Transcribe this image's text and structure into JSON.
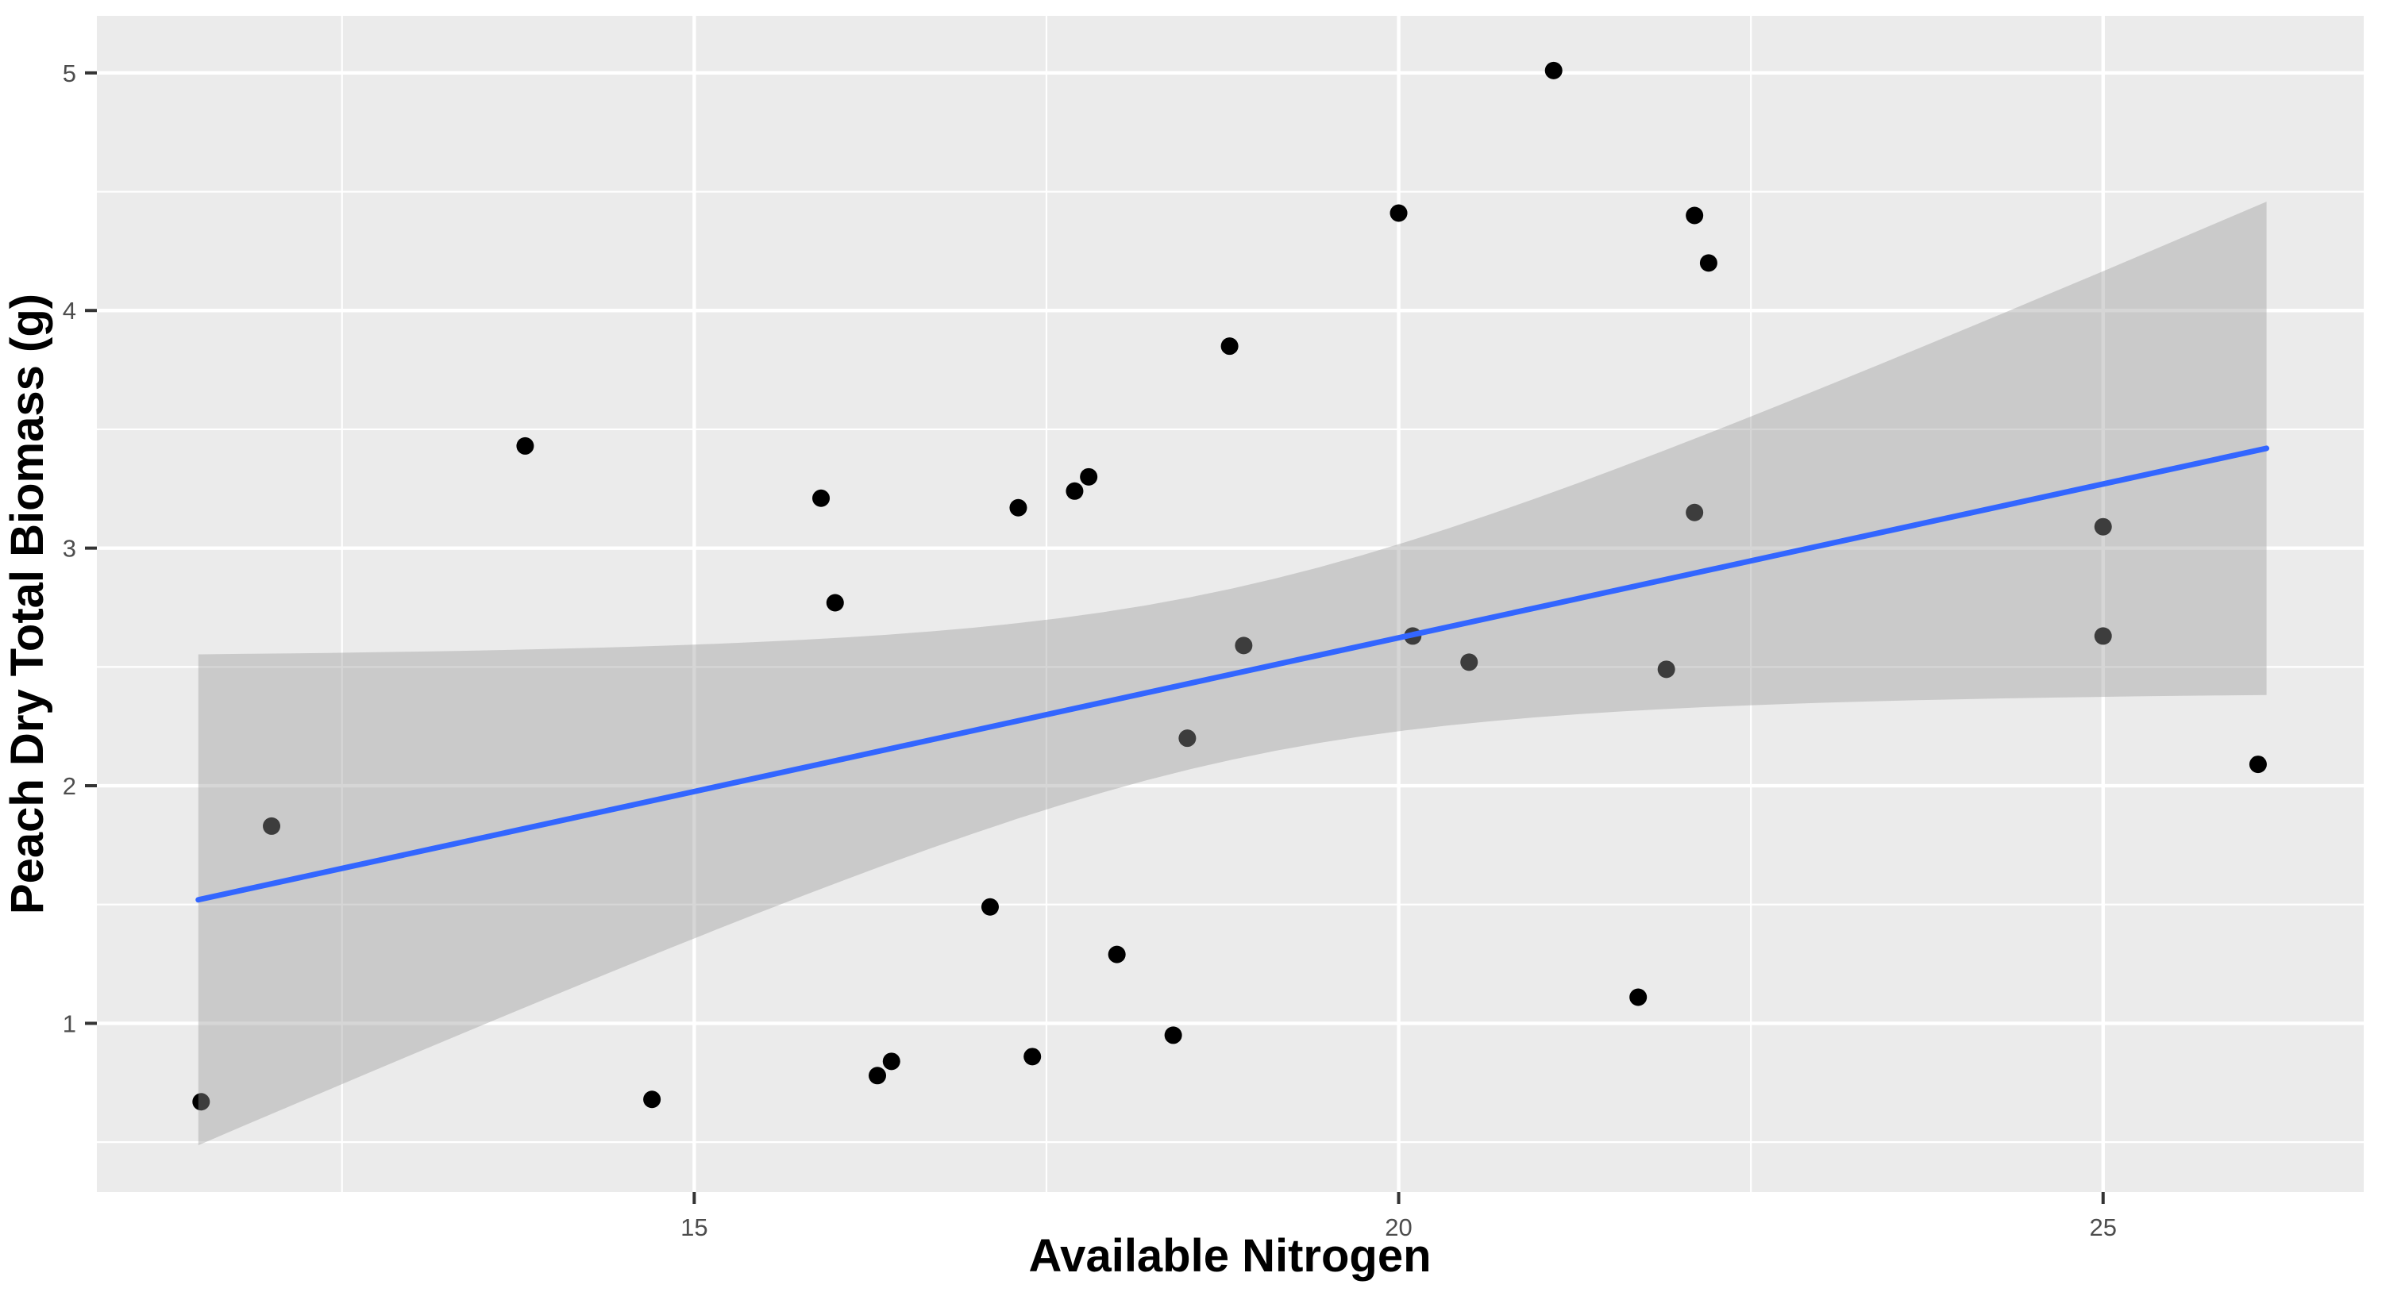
{
  "chart_data": {
    "type": "scatter",
    "title": "",
    "xlabel": "Available Nitrogen",
    "ylabel": "Peach Dry Total Biomass (g)",
    "x_ticks": [
      15,
      20,
      25
    ],
    "x_minor_ticks": [
      12.5,
      17.5,
      22.5
    ],
    "y_ticks": [
      1,
      2,
      3,
      4,
      5
    ],
    "y_minor_ticks": [
      0.5,
      1.5,
      2.5,
      3.5,
      4.5
    ],
    "xlim": [
      10.76,
      26.85
    ],
    "ylim": [
      0.29,
      5.24
    ],
    "grid": true,
    "legend": false,
    "points": [
      [
        11.5,
        0.67
      ],
      [
        12.0,
        1.83
      ],
      [
        13.8,
        3.43
      ],
      [
        14.7,
        0.68
      ],
      [
        15.9,
        3.21
      ],
      [
        16.0,
        2.77
      ],
      [
        16.3,
        0.78
      ],
      [
        16.4,
        0.84
      ],
      [
        17.1,
        1.49
      ],
      [
        17.3,
        3.17
      ],
      [
        17.4,
        0.86
      ],
      [
        17.7,
        3.24
      ],
      [
        17.8,
        3.3
      ],
      [
        18.0,
        1.29
      ],
      [
        18.4,
        0.95
      ],
      [
        18.5,
        2.2
      ],
      [
        18.8,
        3.85
      ],
      [
        18.9,
        2.59
      ],
      [
        20.0,
        4.41
      ],
      [
        20.1,
        2.63
      ],
      [
        20.5,
        2.52
      ],
      [
        21.1,
        5.01
      ],
      [
        21.7,
        1.11
      ],
      [
        21.9,
        2.49
      ],
      [
        22.1,
        4.4
      ],
      [
        22.2,
        4.2
      ],
      [
        22.1,
        3.15
      ],
      [
        25.0,
        3.09
      ],
      [
        25.0,
        2.63
      ],
      [
        26.1,
        2.09
      ]
    ],
    "regression_line": {
      "x_start": 11.48,
      "y_start": 1.52,
      "x_end": 26.16,
      "y_end": 3.42
    },
    "confidence_band": {
      "x_start": 11.48,
      "x_end": 26.16,
      "half_width_min": 0.36,
      "center_x": 18.8,
      "curvature": 0.135
    },
    "style": {
      "panel_bg": "#EBEBEB",
      "grid_color": "#FFFFFF",
      "point_color": "#000000",
      "line_color": "#3366FF",
      "ribbon_color": "#999999",
      "ribbon_opacity": 0.4,
      "tick_label_color": "#4D4D4D",
      "tick_mark_color": "#333333",
      "axis_title_color": "#000000",
      "figure_bg": "#FFFFFF"
    }
  }
}
